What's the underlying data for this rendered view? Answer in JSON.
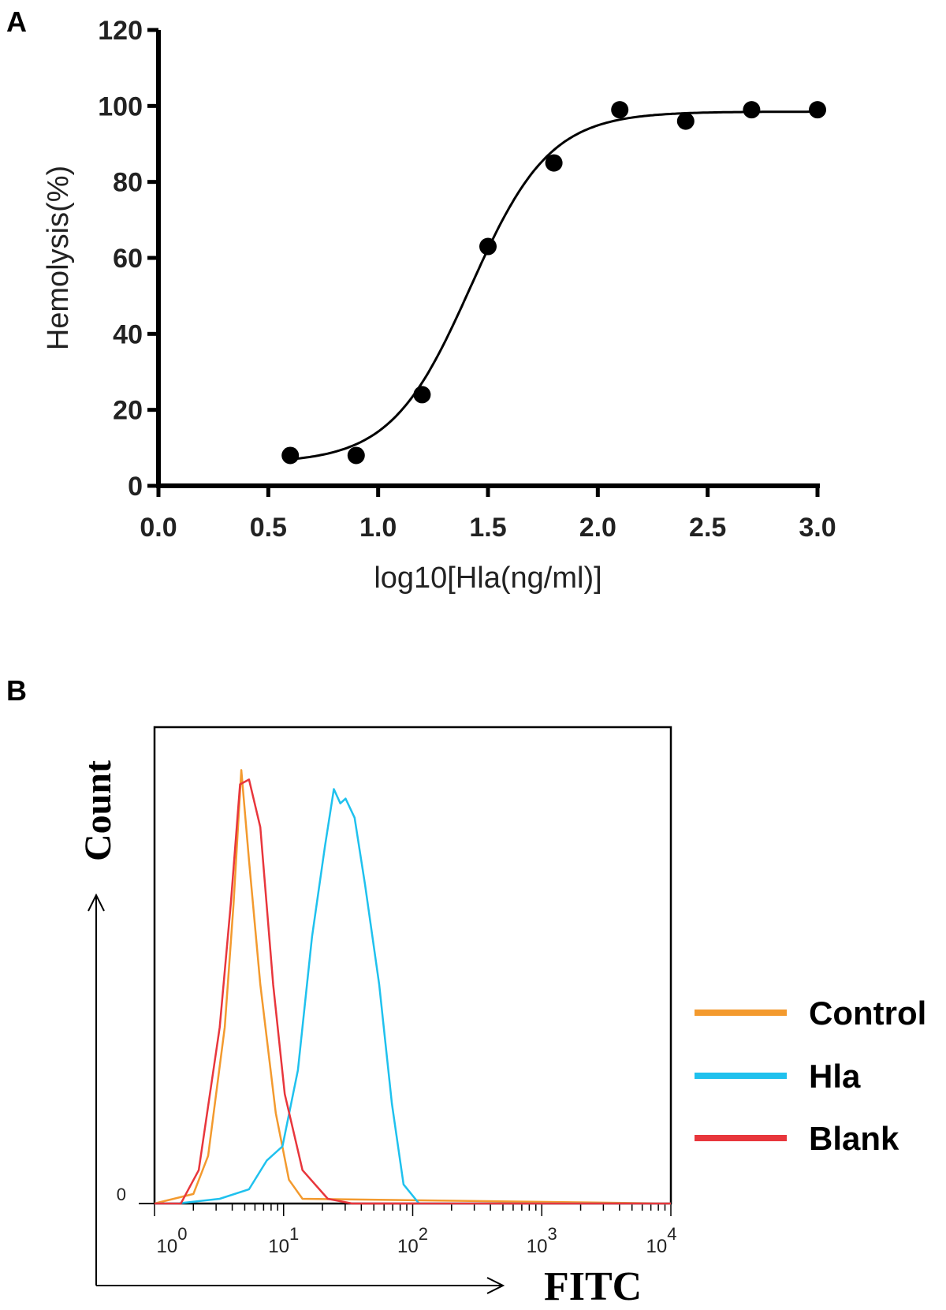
{
  "chart_data": [
    {
      "panel_label": "A",
      "type": "scatter",
      "xlabel": "log10[Hla(ng/ml)]",
      "ylabel": "Hemolysis(%)",
      "xlim": [
        0,
        3.0
      ],
      "ylim": [
        0,
        120
      ],
      "x_ticks": [
        "0.0",
        "0.5",
        "1.0",
        "1.5",
        "2.0",
        "2.5",
        "3.0"
      ],
      "y_ticks": [
        "0",
        "20",
        "40",
        "60",
        "80",
        "100",
        "120"
      ],
      "grid": false,
      "points": {
        "x": [
          0.6,
          0.9,
          1.2,
          1.5,
          1.8,
          2.1,
          2.4,
          2.7,
          3.0
        ],
        "y": [
          8,
          8,
          24,
          63,
          85,
          99,
          96,
          99,
          99
        ]
      },
      "fit_curve": {
        "model": "sigmoidal dose-response",
        "bottom": 6,
        "top": 98.5,
        "logEC50": 1.42,
        "hill_slope": 2.4,
        "x_range": [
          0.6,
          3.0
        ]
      },
      "color": "#000000"
    },
    {
      "panel_label": "B",
      "type": "line",
      "xlabel": "FITC",
      "ylabel": "Count",
      "x_scale": "log",
      "xlim": [
        1,
        10000
      ],
      "ylim": [
        0,
        100
      ],
      "x_ticks": [
        {
          "base": "10",
          "exp": "0"
        },
        {
          "base": "10",
          "exp": "1"
        },
        {
          "base": "10",
          "exp": "2"
        },
        {
          "base": "10",
          "exp": "3"
        },
        {
          "base": "10",
          "exp": "4"
        }
      ],
      "y_ticks": [
        "0"
      ],
      "grid": false,
      "legend": "right",
      "series": [
        {
          "name": "Control",
          "color": "#f39a2e",
          "x": [
            1,
            2.0,
            2.6,
            3.5,
            4.1,
            4.7,
            5.4,
            6.6,
            8.7,
            11,
            14,
            10000
          ],
          "y": [
            0,
            2,
            10,
            37,
            63,
            91,
            72,
            46,
            19,
            5,
            1,
            0
          ]
        },
        {
          "name": "Hla",
          "color": "#1fc1ee",
          "x": [
            1,
            1.5,
            3.2,
            5.4,
            7.4,
            9.8,
            12.9,
            16.6,
            20.9,
            24.5,
            27.5,
            30.2,
            35.5,
            42.7,
            55,
            69,
            85,
            112,
            10000
          ],
          "y": [
            0,
            0,
            1,
            3,
            9,
            12,
            28,
            56,
            75,
            87,
            84,
            85,
            81,
            67,
            46,
            21,
            4,
            0,
            0
          ]
        },
        {
          "name": "Blank",
          "color": "#e8363c",
          "x": [
            1,
            1.6,
            2.2,
            3.2,
            3.9,
            4.6,
            5.4,
            6.6,
            8.3,
            10.2,
            14,
            22,
            34,
            10000
          ],
          "y": [
            0,
            0,
            7,
            37,
            63,
            88,
            89,
            79,
            46,
            23,
            7,
            1,
            0,
            0
          ]
        }
      ]
    }
  ]
}
